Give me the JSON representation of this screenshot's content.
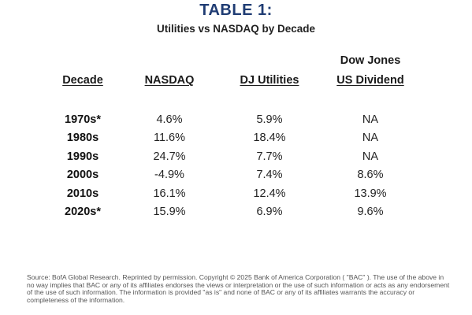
{
  "title": "TABLE 1:",
  "subtitle": "Utilities vs NASDAQ by Decade",
  "table": {
    "headers": {
      "decade": "Decade",
      "nasdaq": "NASDAQ",
      "dj_utilities": "DJ Utilities",
      "dow_jones_top": "Dow Jones",
      "dow_jones_bottom": "US Dividend"
    },
    "rows": [
      {
        "decade": "1970s*",
        "nasdaq": "4.6%",
        "dj_utilities": "5.9%",
        "dividend": "NA"
      },
      {
        "decade": "1980s",
        "nasdaq": "11.6%",
        "dj_utilities": "18.4%",
        "dividend": "NA"
      },
      {
        "decade": "1990s",
        "nasdaq": "24.7%",
        "dj_utilities": "7.7%",
        "dividend": "NA"
      },
      {
        "decade": "2000s",
        "nasdaq": "-4.9%",
        "dj_utilities": "7.4%",
        "dividend": "8.6%"
      },
      {
        "decade": "2010s",
        "nasdaq": "16.1%",
        "dj_utilities": "12.4%",
        "dividend": "13.9%"
      },
      {
        "decade": "2020s*",
        "nasdaq": "15.9%",
        "dj_utilities": "6.9%",
        "dividend": "9.6%"
      }
    ]
  },
  "source": "Source: BofA Global Research. Reprinted by permission. Copyright © 2025 Bank of America Corporation ( \"BAC\" ). The use of the above in no way implies that BAC or any of its affiliates endorses the views or interpretation or the use of such information or acts as any endorsement of the use of such information. The information is provided \"as is\" and none of BAC or any of its affiliates warrants the accuracy or completeness of the information."
}
